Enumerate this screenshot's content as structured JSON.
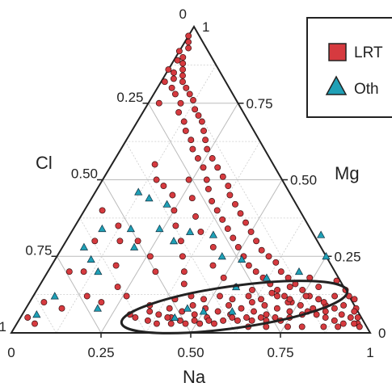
{
  "chart_data": {
    "type": "scatter",
    "subtype": "ternary",
    "axes": [
      {
        "name": "Na",
        "ticks": [
          "0",
          "0.25",
          "0.50",
          "0.75",
          "1"
        ]
      },
      {
        "name": "Mg",
        "ticks": [
          "0",
          "0.25",
          "0.50",
          "0.75",
          "1"
        ]
      },
      {
        "name": "Cl",
        "ticks": [
          "0.25",
          "0.50",
          "0.75",
          "1"
        ]
      }
    ],
    "grid": true,
    "legend_position": "top-right",
    "series": [
      {
        "name": "LRT",
        "marker": "circle",
        "color": "#d63a3f",
        "note": "values are [Na, Mg] fractions; Cl = 1 - Na - Mg",
        "points": [
          [
            0.0,
            0.97
          ],
          [
            0.01,
            0.95
          ],
          [
            0.02,
            0.93
          ],
          [
            0.0,
            0.92
          ],
          [
            0.02,
            0.9
          ],
          [
            0.01,
            0.89
          ],
          [
            0.03,
            0.88
          ],
          [
            0.04,
            0.86
          ],
          [
            0.0,
            0.86
          ],
          [
            0.02,
            0.85
          ],
          [
            0.05,
            0.84
          ],
          [
            0.03,
            0.83
          ],
          [
            0.06,
            0.82
          ],
          [
            0.01,
            0.82
          ],
          [
            0.08,
            0.8
          ],
          [
            0.04,
            0.8
          ],
          [
            0.1,
            0.78
          ],
          [
            0.06,
            0.78
          ],
          [
            0.12,
            0.76
          ],
          [
            0.09,
            0.75
          ],
          [
            0.03,
            0.75
          ],
          [
            0.14,
            0.73
          ],
          [
            0.16,
            0.71
          ],
          [
            0.1,
            0.72
          ],
          [
            0.18,
            0.69
          ],
          [
            0.13,
            0.69
          ],
          [
            0.2,
            0.66
          ],
          [
            0.15,
            0.66
          ],
          [
            0.22,
            0.63
          ],
          [
            0.18,
            0.63
          ],
          [
            0.24,
            0.6
          ],
          [
            0.2,
            0.6
          ],
          [
            0.27,
            0.57
          ],
          [
            0.23,
            0.57
          ],
          [
            0.3,
            0.54
          ],
          [
            0.26,
            0.54
          ],
          [
            0.33,
            0.51
          ],
          [
            0.29,
            0.5
          ],
          [
            0.36,
            0.48
          ],
          [
            0.31,
            0.47
          ],
          [
            0.38,
            0.45
          ],
          [
            0.34,
            0.43
          ],
          [
            0.41,
            0.42
          ],
          [
            0.37,
            0.4
          ],
          [
            0.44,
            0.39
          ],
          [
            0.4,
            0.37
          ],
          [
            0.47,
            0.36
          ],
          [
            0.43,
            0.34
          ],
          [
            0.5,
            0.33
          ],
          [
            0.46,
            0.31
          ],
          [
            0.53,
            0.3
          ],
          [
            0.49,
            0.28
          ],
          [
            0.56,
            0.27
          ],
          [
            0.52,
            0.25
          ],
          [
            0.59,
            0.25
          ],
          [
            0.55,
            0.22
          ],
          [
            0.62,
            0.23
          ],
          [
            0.58,
            0.2
          ],
          [
            0.65,
            0.2
          ],
          [
            0.61,
            0.18
          ],
          [
            0.68,
            0.18
          ],
          [
            0.64,
            0.16
          ],
          [
            0.71,
            0.16
          ],
          [
            0.67,
            0.14
          ],
          [
            0.74,
            0.14
          ],
          [
            0.7,
            0.12
          ],
          [
            0.77,
            0.12
          ],
          [
            0.73,
            0.1
          ],
          [
            0.8,
            0.11
          ],
          [
            0.76,
            0.09
          ],
          [
            0.83,
            0.09
          ],
          [
            0.79,
            0.07
          ],
          [
            0.86,
            0.08
          ],
          [
            0.82,
            0.06
          ],
          [
            0.89,
            0.06
          ],
          [
            0.85,
            0.05
          ],
          [
            0.92,
            0.05
          ],
          [
            0.88,
            0.04
          ],
          [
            0.95,
            0.03
          ],
          [
            0.91,
            0.03
          ],
          [
            0.35,
            0.07
          ],
          [
            0.38,
            0.06
          ],
          [
            0.4,
            0.08
          ],
          [
            0.42,
            0.05
          ],
          [
            0.44,
            0.07
          ],
          [
            0.46,
            0.09
          ],
          [
            0.48,
            0.06
          ],
          [
            0.5,
            0.08
          ],
          [
            0.52,
            0.05
          ],
          [
            0.54,
            0.07
          ],
          [
            0.56,
            0.09
          ],
          [
            0.58,
            0.06
          ],
          [
            0.6,
            0.08
          ],
          [
            0.62,
            0.1
          ],
          [
            0.64,
            0.07
          ],
          [
            0.66,
            0.09
          ],
          [
            0.68,
            0.06
          ],
          [
            0.7,
            0.08
          ],
          [
            0.72,
            0.1
          ],
          [
            0.74,
            0.07
          ],
          [
            0.36,
            0.04
          ],
          [
            0.39,
            0.03
          ],
          [
            0.41,
            0.05
          ],
          [
            0.43,
            0.03
          ],
          [
            0.45,
            0.04
          ],
          [
            0.47,
            0.03
          ],
          [
            0.49,
            0.04
          ],
          [
            0.51,
            0.03
          ],
          [
            0.53,
            0.04
          ],
          [
            0.55,
            0.03
          ],
          [
            0.57,
            0.04
          ],
          [
            0.59,
            0.05
          ],
          [
            0.61,
            0.04
          ],
          [
            0.63,
            0.05
          ],
          [
            0.65,
            0.04
          ],
          [
            0.67,
            0.05
          ],
          [
            0.69,
            0.04
          ],
          [
            0.71,
            0.05
          ],
          [
            0.73,
            0.04
          ],
          [
            0.75,
            0.05
          ],
          [
            0.4,
            0.11
          ],
          [
            0.44,
            0.12
          ],
          [
            0.48,
            0.11
          ],
          [
            0.52,
            0.12
          ],
          [
            0.56,
            0.11
          ],
          [
            0.6,
            0.12
          ],
          [
            0.64,
            0.11
          ],
          [
            0.68,
            0.12
          ],
          [
            0.72,
            0.11
          ],
          [
            0.76,
            0.12
          ],
          [
            0.3,
            0.06
          ],
          [
            0.32,
            0.05
          ],
          [
            0.34,
            0.09
          ],
          [
            0.78,
            0.06
          ],
          [
            0.8,
            0.08
          ],
          [
            0.82,
            0.1
          ],
          [
            0.84,
            0.12
          ],
          [
            0.86,
            0.14
          ],
          [
            0.84,
            0.07
          ],
          [
            0.88,
            0.09
          ],
          [
            0.9,
            0.11
          ],
          [
            0.92,
            0.08
          ],
          [
            0.94,
            0.05
          ],
          [
            0.96,
            0.02
          ],
          [
            0.9,
            0.02
          ],
          [
            0.86,
            0.02
          ],
          [
            0.8,
            0.02
          ],
          [
            0.76,
            0.02
          ],
          [
            0.7,
            0.02
          ],
          [
            0.65,
            0.02
          ],
          [
            0.25,
            0.4
          ],
          [
            0.22,
            0.45
          ],
          [
            0.28,
            0.35
          ],
          [
            0.32,
            0.3
          ],
          [
            0.35,
            0.25
          ],
          [
            0.38,
            0.2
          ],
          [
            0.3,
            0.2
          ],
          [
            0.26,
            0.25
          ],
          [
            0.2,
            0.3
          ],
          [
            0.4,
            0.16
          ],
          [
            0.15,
            0.5
          ],
          [
            0.12,
            0.55
          ],
          [
            0.18,
            0.48
          ],
          [
            0.24,
            0.5
          ],
          [
            0.28,
            0.44
          ],
          [
            0.32,
            0.38
          ],
          [
            0.36,
            0.33
          ],
          [
            0.42,
            0.28
          ],
          [
            0.45,
            0.22
          ],
          [
            0.5,
            0.18
          ],
          [
            0.55,
            0.15
          ],
          [
            0.6,
            0.14
          ],
          [
            0.66,
            0.13
          ],
          [
            0.7,
            0.15
          ],
          [
            0.74,
            0.18
          ],
          [
            0.78,
            0.15
          ],
          [
            0.82,
            0.17
          ],
          [
            0.88,
            0.12
          ],
          [
            0.92,
            0.07
          ],
          [
            0.94,
            0.03
          ],
          [
            0.05,
            0.4
          ],
          [
            0.08,
            0.3
          ],
          [
            0.06,
            0.2
          ],
          [
            0.04,
            0.1
          ],
          [
            0.02,
            0.05
          ],
          [
            0.1,
            0.2
          ],
          [
            0.12,
            0.35
          ],
          [
            0.15,
            0.3
          ],
          [
            0.18,
            0.22
          ],
          [
            0.22,
            0.15
          ],
          [
            0.26,
            0.12
          ],
          [
            0.2,
            0.1
          ],
          [
            0.15,
            0.12
          ],
          [
            0.1,
            0.08
          ],
          [
            0.05,
            0.03
          ]
        ]
      },
      {
        "name": "Oth",
        "marker": "triangle",
        "color": "#1fa0b6",
        "note": "values are [Na, Mg] fractions; Cl = 1 - Na - Mg",
        "points": [
          [
            0.3,
            0.3
          ],
          [
            0.16,
            0.44
          ],
          [
            0.33,
            0.33
          ],
          [
            0.46,
            0.25
          ],
          [
            0.2,
            0.28
          ],
          [
            0.1,
            0.24
          ],
          [
            0.14,
            0.2
          ],
          [
            0.08,
            0.34
          ],
          [
            0.16,
            0.34
          ],
          [
            0.24,
            0.34
          ],
          [
            0.12,
            0.46
          ],
          [
            0.22,
            0.42
          ],
          [
            0.45,
            0.08
          ],
          [
            0.5,
            0.07
          ],
          [
            0.58,
            0.07
          ],
          [
            0.55,
            0.15
          ],
          [
            0.62,
            0.18
          ],
          [
            0.52,
            0.24
          ],
          [
            0.4,
            0.32
          ],
          [
            0.7,
            0.2
          ],
          [
            0.75,
            0.25
          ],
          [
            0.7,
            0.32
          ],
          [
            0.06,
            0.12
          ],
          [
            0.04,
            0.06
          ],
          [
            0.2,
            0.08
          ],
          [
            0.43,
            0.05
          ],
          [
            0.06,
            0.28
          ]
        ]
      }
    ]
  }
}
